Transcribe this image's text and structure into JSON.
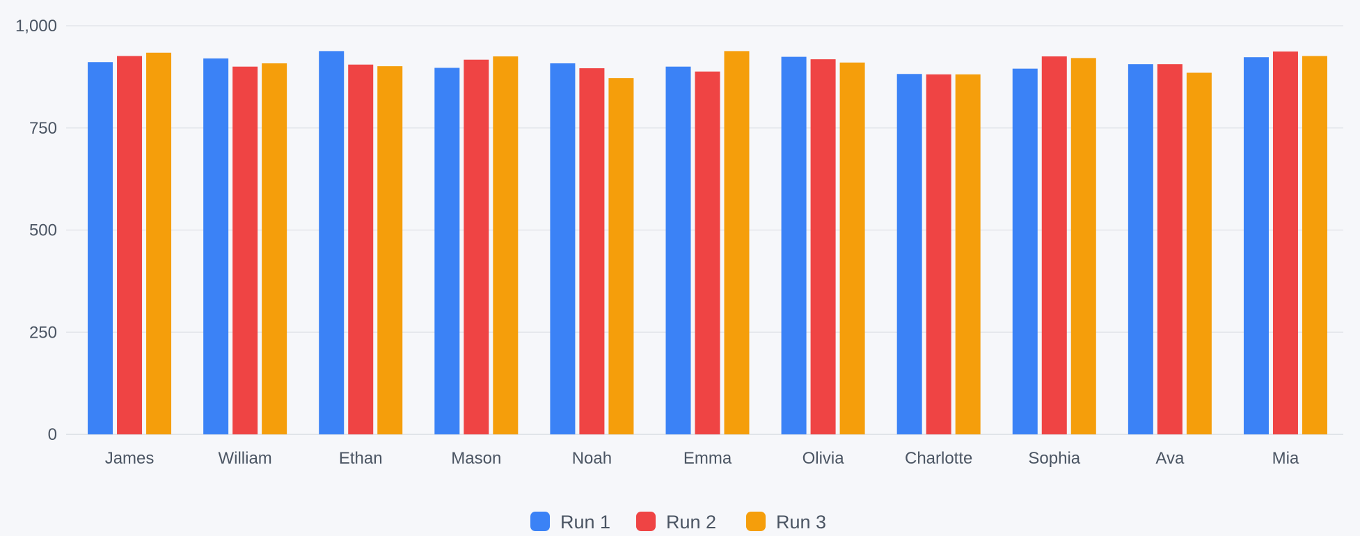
{
  "chart_data": {
    "type": "bar",
    "categories": [
      "James",
      "William",
      "Ethan",
      "Mason",
      "Noah",
      "Emma",
      "Olivia",
      "Charlotte",
      "Sophia",
      "Ava",
      "Mia"
    ],
    "series": [
      {
        "name": "Run 1",
        "color": "#3b82f6",
        "values": [
          911,
          920,
          938,
          897,
          908,
          900,
          924,
          882,
          895,
          906,
          923
        ]
      },
      {
        "name": "Run 2",
        "color": "#ef4444",
        "values": [
          926,
          900,
          905,
          917,
          896,
          888,
          918,
          881,
          925,
          906,
          937
        ]
      },
      {
        "name": "Run 3",
        "color": "#f59e0b",
        "values": [
          934,
          908,
          901,
          925,
          872,
          938,
          910,
          881,
          921,
          885,
          926
        ]
      }
    ],
    "ylim": [
      0,
      1000
    ],
    "yticks": [
      0,
      250,
      500,
      750,
      1000
    ],
    "ytick_labels": [
      "0",
      "250",
      "500",
      "750",
      "1,000"
    ],
    "grid": true,
    "legend_position": "bottom-center",
    "xlabel": "",
    "ylabel": "",
    "title": ""
  }
}
